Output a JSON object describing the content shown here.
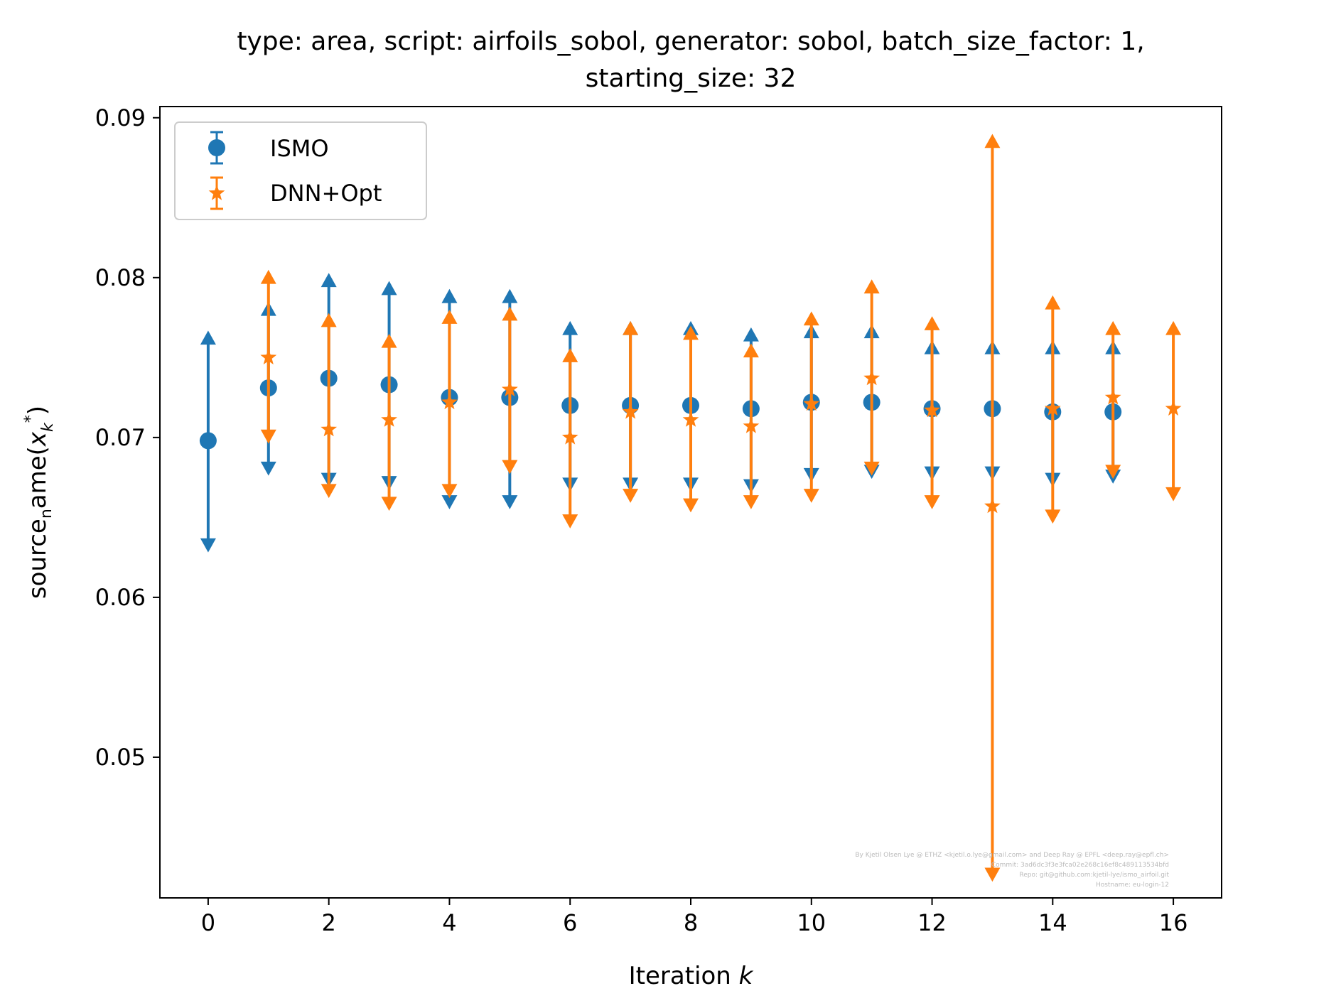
{
  "chart_data": {
    "type": "scatter",
    "title_line1": "type: area, script: airfoils_sobol, generator: sobol, batch_size_factor: 1,",
    "title_line2": "starting_size: 32",
    "xlabel": "Iteration k",
    "ylabel": "source_name(x*_k)",
    "xlim": [
      -0.8,
      16.8
    ],
    "ylim": [
      0.0412,
      0.0907
    ],
    "xticks": [
      0,
      2,
      4,
      6,
      8,
      10,
      12,
      14,
      16
    ],
    "yticks": [
      0.05,
      0.06,
      0.07,
      0.08,
      0.09
    ],
    "ytick_labels": [
      "0.05",
      "0.06",
      "0.07",
      "0.08",
      "0.09"
    ],
    "grid": false,
    "legend": {
      "location": "top-left",
      "entries": [
        "ISMO",
        "DNN+Opt"
      ]
    },
    "series": [
      {
        "name": "ISMO",
        "color": "#1f77b4",
        "marker": "circle",
        "x": [
          0,
          1,
          2,
          3,
          4,
          5,
          6,
          7,
          8,
          9,
          10,
          11,
          12,
          13,
          14,
          15
        ],
        "y": [
          0.0698,
          0.0731,
          0.0737,
          0.0733,
          0.0725,
          0.0725,
          0.072,
          0.072,
          0.072,
          0.0718,
          0.0722,
          0.0722,
          0.0718,
          0.0718,
          0.0716,
          0.0716
        ],
        "y_lower": [
          0.0633,
          0.0681,
          0.0674,
          0.0672,
          0.066,
          0.066,
          0.0671,
          0.0671,
          0.0671,
          0.067,
          0.0677,
          0.0679,
          0.0678,
          0.0678,
          0.0674,
          0.0676
        ],
        "y_upper": [
          0.0762,
          0.078,
          0.0798,
          0.0793,
          0.0788,
          0.0788,
          0.0768,
          0.0768,
          0.0768,
          0.0764,
          0.0766,
          0.0766,
          0.0756,
          0.0756,
          0.0756,
          0.0756
        ]
      },
      {
        "name": "DNN+Opt",
        "color": "#ff7f0e",
        "marker": "star",
        "x": [
          1,
          2,
          3,
          4,
          5,
          6,
          7,
          8,
          9,
          10,
          11,
          12,
          13,
          14,
          15,
          16
        ],
        "y": [
          0.075,
          0.0705,
          0.0711,
          0.0722,
          0.073,
          0.07,
          0.0716,
          0.0711,
          0.0707,
          0.0721,
          0.0737,
          0.0717,
          0.0657,
          0.0718,
          0.0725,
          0.0718
        ],
        "y_lower": [
          0.0701,
          0.0667,
          0.0659,
          0.0667,
          0.0682,
          0.0648,
          0.0664,
          0.0658,
          0.066,
          0.0664,
          0.0681,
          0.066,
          0.0427,
          0.0651,
          0.0679,
          0.0665
        ],
        "y_upper": [
          0.08,
          0.0773,
          0.076,
          0.0775,
          0.0777,
          0.0751,
          0.0768,
          0.0765,
          0.0754,
          0.0774,
          0.0794,
          0.0771,
          0.0885,
          0.0784,
          0.0768,
          0.0768
        ]
      }
    ]
  },
  "watermark": {
    "line1": "By Kjetil Olsen Lye @ ETHZ <kjetil.o.lye@gmail.com> and Deep Ray @ EPFL <deep.ray@epfl.ch>",
    "line2": "Commit: 3ad6dc3f3e3fca02e268c16ef8c489113534bfd",
    "line3": "Repo: git@github.com:kjetil-lye/ismo_airfoil.git",
    "line4": "Hostname: eu-login-12"
  }
}
